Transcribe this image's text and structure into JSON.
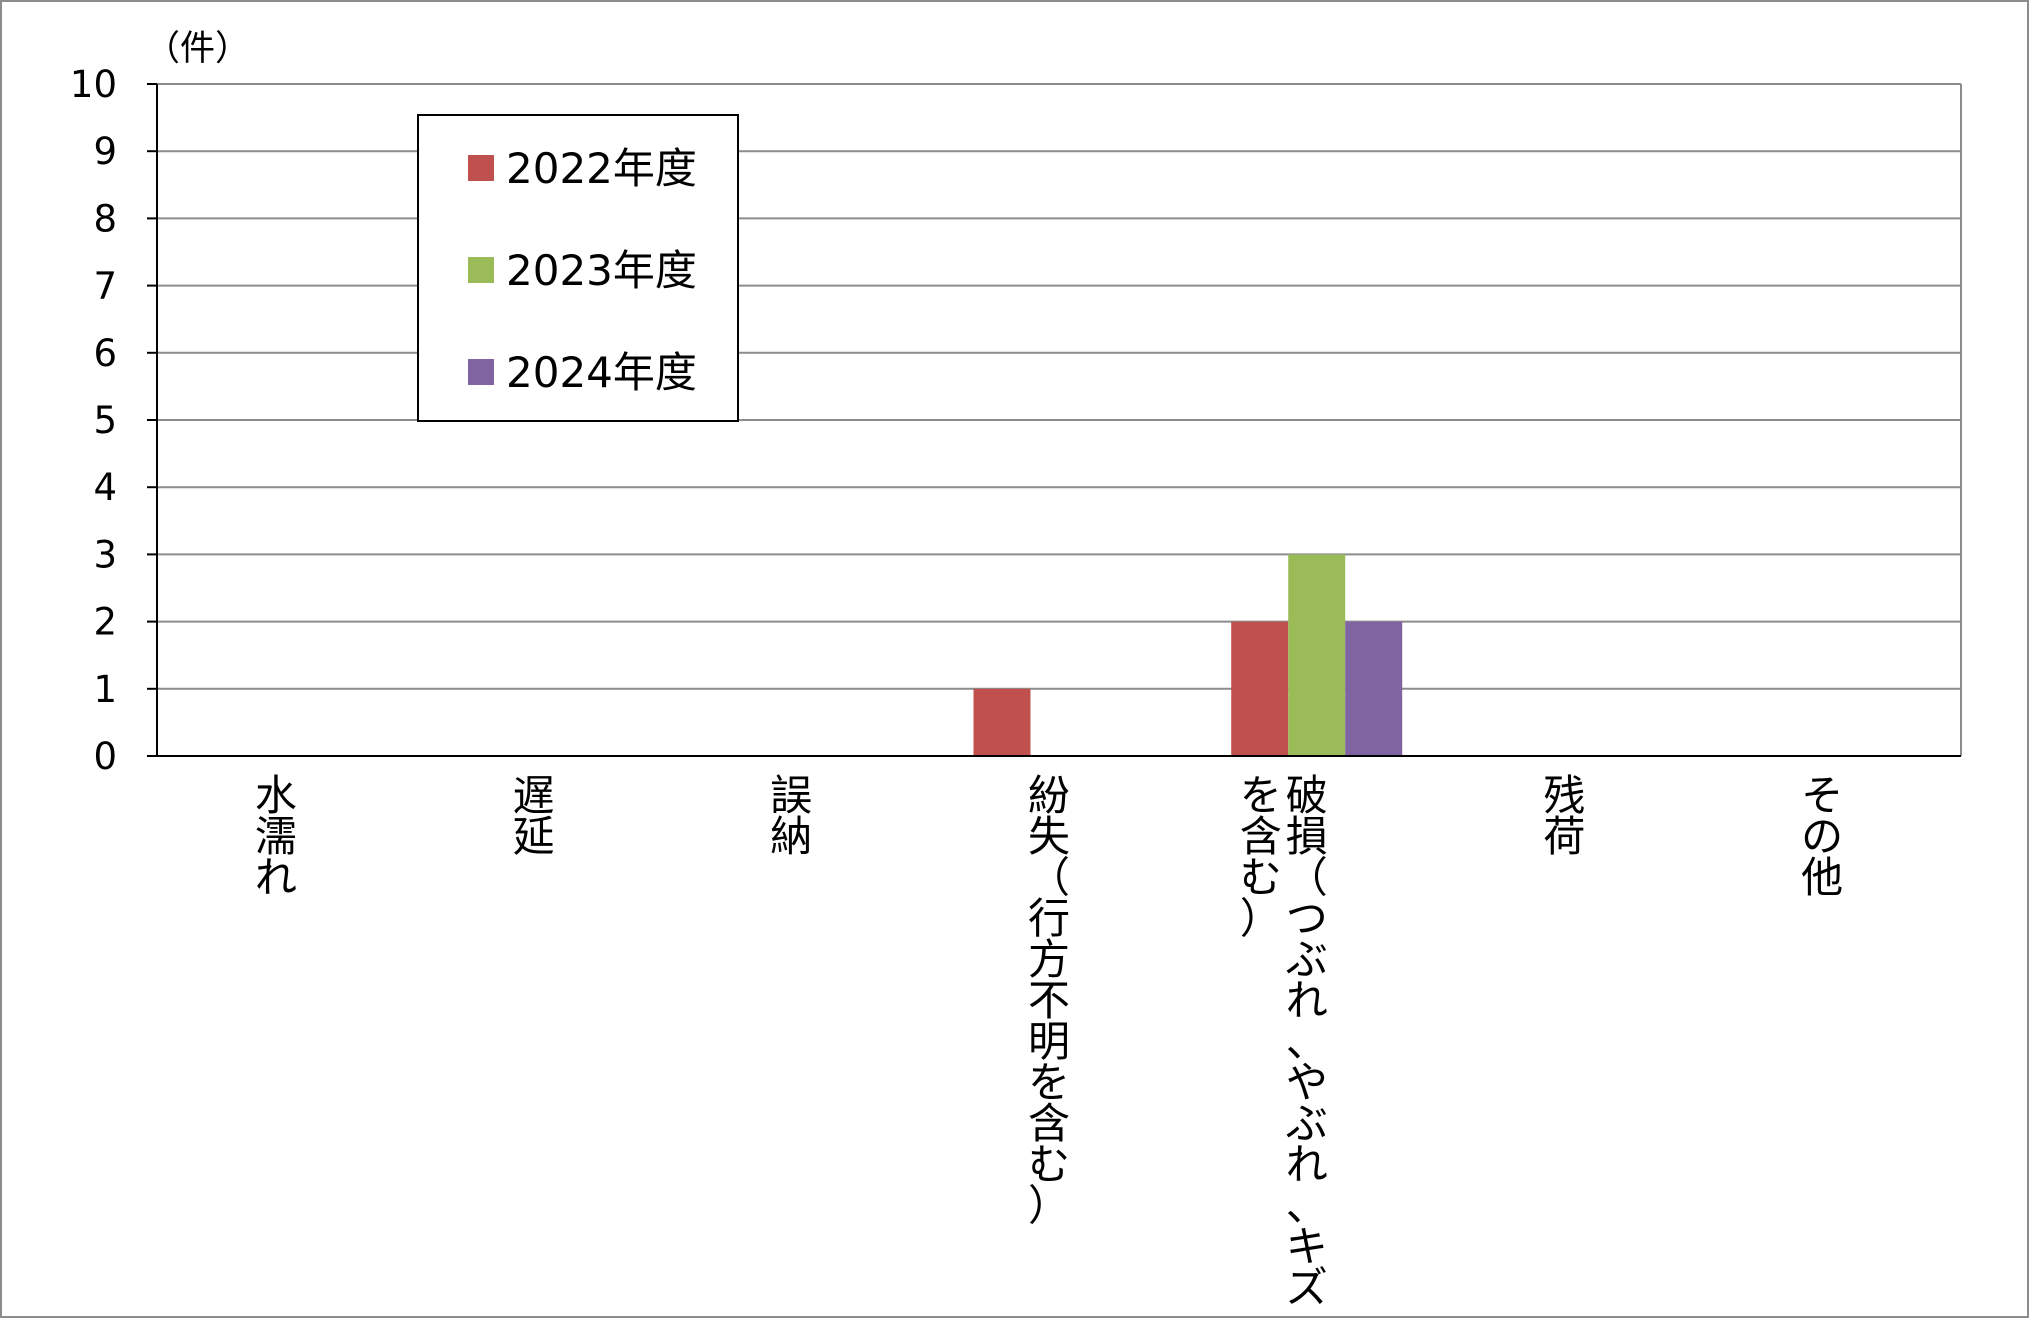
{
  "chart_data": {
    "type": "bar",
    "title": "",
    "xlabel": "",
    "ylabel": "",
    "y_unit": "（件）",
    "ylim": [
      0,
      10
    ],
    "y_ticks": [
      0,
      1,
      2,
      3,
      4,
      5,
      6,
      7,
      8,
      9,
      10
    ],
    "grid": true,
    "legend_position": "top-left",
    "categories": [
      "水濡れ",
      "遅延",
      "誤納",
      "紛失（行方不明を含む）",
      "破損（つぶれ、やぶれ、キズを含む）",
      "残荷",
      "その他"
    ],
    "category_label_lines": [
      [
        "水濡れ"
      ],
      [
        "遅延"
      ],
      [
        "誤納"
      ],
      [
        "紛失（行方不明を含む）"
      ],
      [
        "破損（つぶれ、やぶれ、キズ",
        "を含む）"
      ],
      [
        "残荷"
      ],
      [
        "その他"
      ]
    ],
    "series": [
      {
        "name": "2022年度",
        "color": "#C0504D",
        "values": [
          0,
          0,
          0,
          1,
          2,
          0,
          0
        ]
      },
      {
        "name": "2023年度",
        "color": "#9BBB59",
        "values": [
          0,
          0,
          0,
          0,
          3,
          0,
          0
        ]
      },
      {
        "name": "2024年度",
        "color": "#8064A2",
        "values": [
          0,
          0,
          0,
          0,
          2,
          0,
          0
        ]
      }
    ]
  }
}
